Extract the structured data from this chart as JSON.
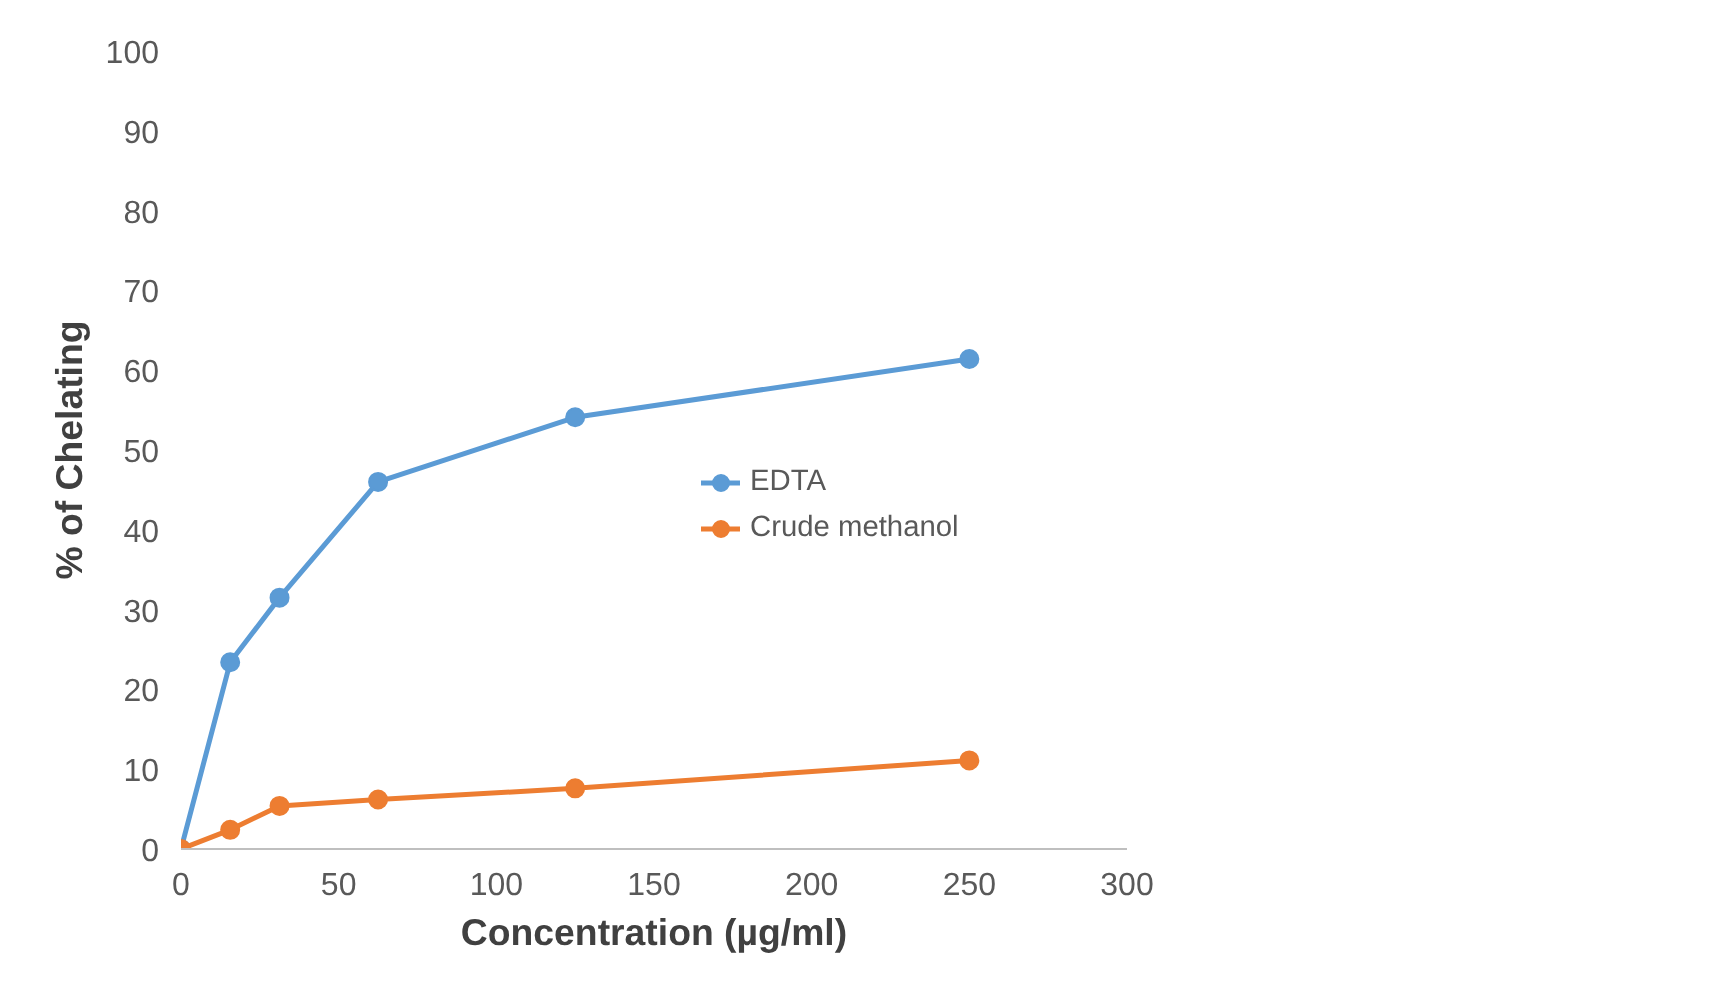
{
  "chart_data": {
    "type": "line",
    "xlabel": "Concentration (µg/ml)",
    "ylabel": "% of Chelating",
    "x": [
      0,
      15.6,
      31.25,
      62.5,
      125,
      250
    ],
    "series": [
      {
        "name": "EDTA",
        "color": "#5b9bd5",
        "values": [
          0,
          23.4,
          31.5,
          46,
          54.1,
          61.4
        ]
      },
      {
        "name": "Crude methanol",
        "color": "#ed7d31",
        "values": [
          0,
          2.4,
          5.4,
          6.2,
          7.6,
          11.1
        ]
      }
    ],
    "xlim": [
      0,
      300
    ],
    "ylim": [
      0,
      100
    ],
    "xticks": [
      0,
      50,
      100,
      150,
      200,
      250,
      300
    ],
    "yticks": [
      0,
      10,
      20,
      30,
      40,
      50,
      60,
      70,
      80,
      90,
      100
    ],
    "grid": false,
    "legend": "right",
    "marker": "circle",
    "line_style": "solid"
  }
}
